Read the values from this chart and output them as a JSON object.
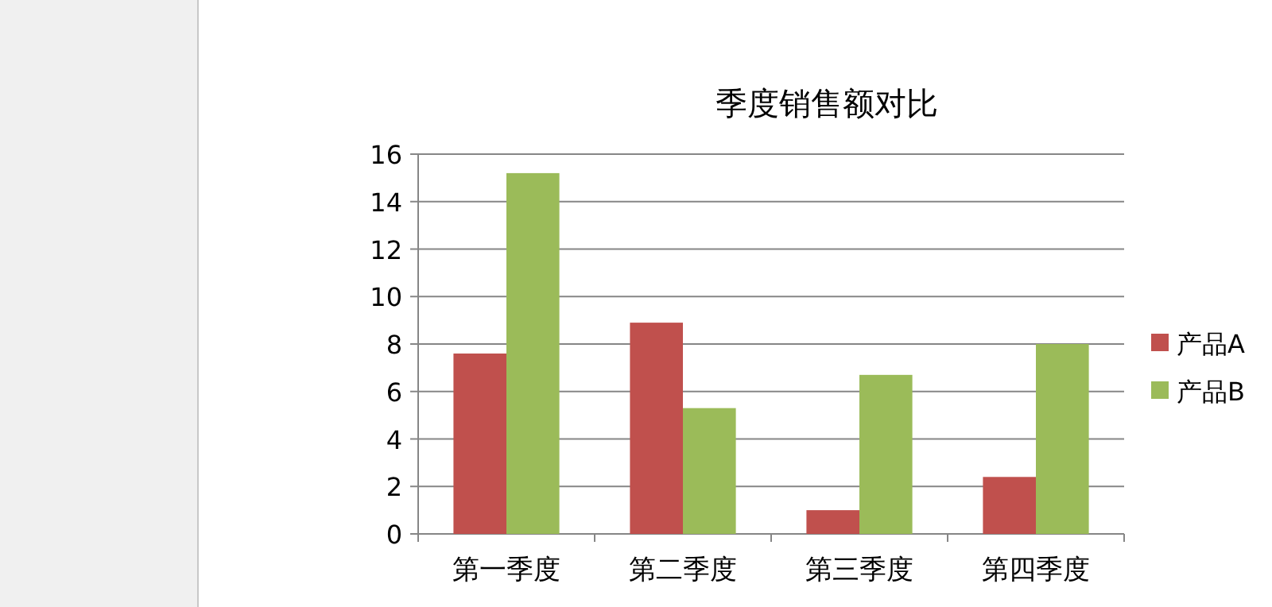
{
  "chart_data": {
    "type": "bar",
    "title": "季度销售额对比",
    "categories": [
      "第一季度",
      "第二季度",
      "第三季度",
      "第四季度"
    ],
    "series": [
      {
        "name": "产品A",
        "color": "#c0504d",
        "values": [
          7.6,
          8.9,
          1.0,
          2.4
        ]
      },
      {
        "name": "产品B",
        "color": "#9bbb59",
        "values": [
          15.2,
          5.3,
          6.7,
          8.0
        ]
      }
    ],
    "ylim": [
      0,
      16
    ],
    "yticks": [
      0,
      2,
      4,
      6,
      8,
      10,
      12,
      14,
      16
    ],
    "grid": "y",
    "legend": "right"
  }
}
